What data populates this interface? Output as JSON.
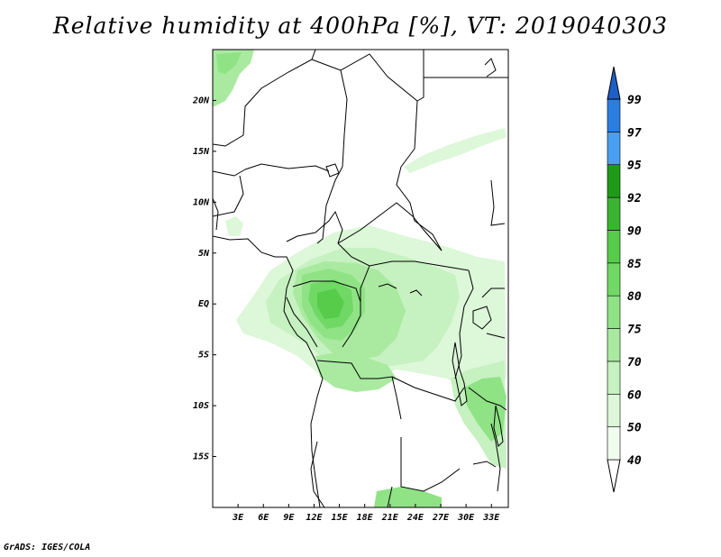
{
  "title": "Relative humidity at 400hPa [%], VT: 2019040303",
  "credit": "GrADS: IGES/COLA",
  "map": {
    "lon_range": [
      0,
      35
    ],
    "lat_range": [
      -20,
      25
    ],
    "lon_ticks": [
      {
        "value": 3,
        "label": "3E"
      },
      {
        "value": 6,
        "label": "6E"
      },
      {
        "value": 9,
        "label": "9E"
      },
      {
        "value": 12,
        "label": "12E"
      },
      {
        "value": 15,
        "label": "15E"
      },
      {
        "value": 18,
        "label": "18E"
      },
      {
        "value": 21,
        "label": "21E"
      },
      {
        "value": 24,
        "label": "24E"
      },
      {
        "value": 27,
        "label": "27E"
      },
      {
        "value": 30,
        "label": "30E"
      },
      {
        "value": 33,
        "label": "33E"
      }
    ],
    "lat_ticks": [
      {
        "value": 20,
        "label": "20N"
      },
      {
        "value": 15,
        "label": "15N"
      },
      {
        "value": 10,
        "label": "10N"
      },
      {
        "value": 5,
        "label": "5N"
      },
      {
        "value": 0,
        "label": "EQ"
      },
      {
        "value": -5,
        "label": "5S"
      },
      {
        "value": -10,
        "label": "10S"
      },
      {
        "value": -15,
        "label": "15S"
      }
    ]
  },
  "colorbar": {
    "levels": [
      {
        "label": "40",
        "color": "#f0fcee"
      },
      {
        "label": "50",
        "color": "#ddf7d9"
      },
      {
        "label": "60",
        "color": "#c6f1c0"
      },
      {
        "label": "70",
        "color": "#a9eaa0"
      },
      {
        "label": "75",
        "color": "#8fe385"
      },
      {
        "label": "80",
        "color": "#70d865"
      },
      {
        "label": "85",
        "color": "#56cc4a"
      },
      {
        "label": "90",
        "color": "#3ab430"
      },
      {
        "label": "92",
        "color": "#1f9a18"
      },
      {
        "label": "95",
        "color": "#4a9ff0"
      },
      {
        "label": "97",
        "color": "#2b7de0"
      },
      {
        "label": "99",
        "color": "#1c5fc8"
      }
    ]
  },
  "colors": {
    "land_outline": "#000000",
    "low_fill": "#ffffff",
    "top_arrow": "#1c5fc8"
  }
}
